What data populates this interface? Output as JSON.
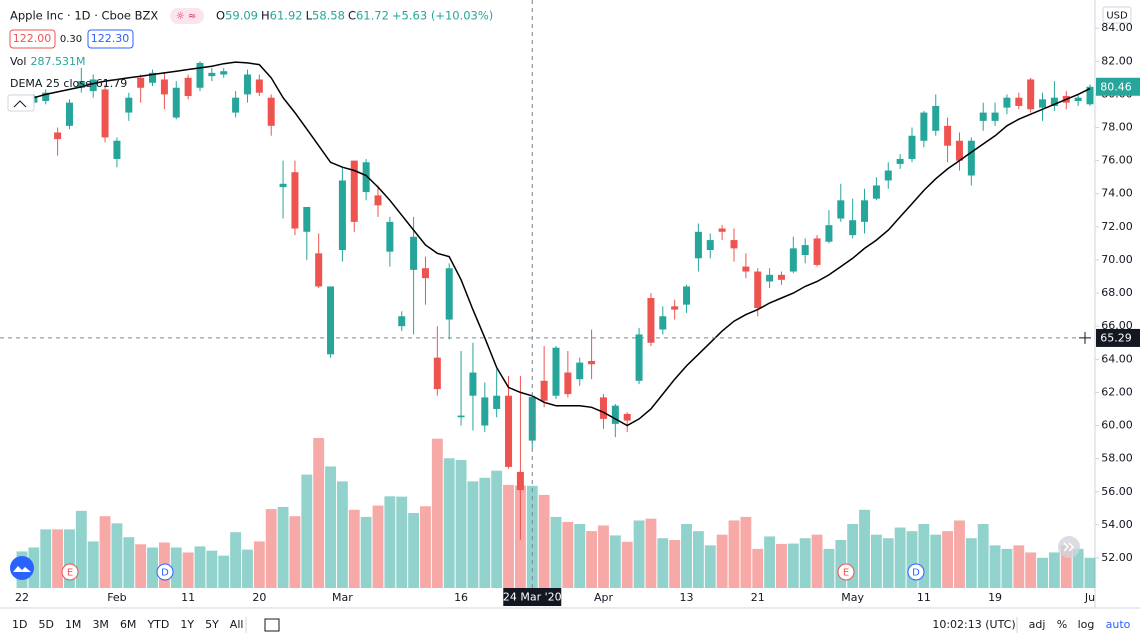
{
  "chart_data": {
    "type": "candlestick",
    "categories": [
      "22",
      null,
      null,
      null,
      null,
      null,
      null,
      null,
      "Feb",
      null,
      null,
      null,
      null,
      null,
      "11",
      null,
      null,
      null,
      null,
      null,
      "20",
      null,
      null,
      null,
      null,
      null,
      null,
      "Mar",
      null,
      null,
      null,
      null,
      null,
      null,
      null,
      null,
      null,
      "16",
      null,
      null,
      null,
      null,
      null,
      null,
      null,
      null,
      null,
      null,
      null,
      "Apr",
      null,
      null,
      null,
      null,
      null,
      null,
      "13",
      null,
      null,
      null,
      null,
      null,
      "21",
      null,
      null,
      null,
      null,
      null,
      null,
      null,
      "May",
      null,
      null,
      null,
      null,
      null,
      "11",
      null,
      null,
      null,
      null,
      null,
      "19",
      null,
      null,
      null,
      null,
      null,
      null,
      null,
      "Ju"
    ],
    "open": [
      79.3,
      79.5,
      79.6,
      77.7,
      78.1,
      80.4,
      80.2,
      80.3,
      76.1,
      78.9,
      81.0,
      80.7,
      80.9,
      78.6,
      81.0,
      80.4,
      81.1,
      81.2,
      78.9,
      80.0,
      80.9,
      79.8,
      74.4,
      75.3,
      71.7,
      70.4,
      64.3,
      70.6,
      76.0,
      74.1,
      73.9,
      70.5,
      66.0,
      69.4,
      69.5,
      64.1,
      66.4,
      60.5,
      61.8,
      60.0,
      61.0,
      61.8,
      57.2,
      59.09,
      62.7,
      61.8,
      63.2,
      62.8,
      63.9,
      61.7,
      60.1,
      60.7,
      62.7,
      67.7,
      65.8,
      67.2,
      67.3,
      70.1,
      70.6,
      71.9,
      71.2,
      69.6,
      69.3,
      68.7,
      69.1,
      69.3,
      70.3,
      71.3,
      71.1,
      72.5,
      71.5,
      72.3,
      73.7,
      74.8,
      75.8,
      76.1,
      77.2,
      77.8,
      78.1,
      77.2,
      75.1,
      78.4,
      78.4,
      79.2,
      79.8,
      80.9,
      79.2,
      79.3,
      79.9,
      79.6,
      79.4
    ],
    "high": [
      79.6,
      80.0,
      80.3,
      78.0,
      79.7,
      81.6,
      81.2,
      80.6,
      77.4,
      80.1,
      81.2,
      81.5,
      81.3,
      80.8,
      81.2,
      82.0,
      81.6,
      81.6,
      80.2,
      81.5,
      81.2,
      80.0,
      76.0,
      76.0,
      73.2,
      71.6,
      68.4,
      75.6,
      76.0,
      76.1,
      74.5,
      72.6,
      66.9,
      72.6,
      70.2,
      66.0,
      69.8,
      64.5,
      65.0,
      62.6,
      63.4,
      63.0,
      63.0,
      61.92,
      64.8,
      64.8,
      64.5,
      64.1,
      65.8,
      61.9,
      61.3,
      60.8,
      65.9,
      68.0,
      67.2,
      67.6,
      68.5,
      72.2,
      71.6,
      72.1,
      71.9,
      70.4,
      69.5,
      69.5,
      69.3,
      71.4,
      71.3,
      71.5,
      73.0,
      74.6,
      73.7,
      74.3,
      75.0,
      75.9,
      76.4,
      78.0,
      79.0,
      80.0,
      78.6,
      77.7,
      77.4,
      79.5,
      79.5,
      80.0,
      80.1,
      81.0,
      80.1,
      80.8,
      80.2,
      80.0,
      80.6
    ],
    "low": [
      79.0,
      79.3,
      79.4,
      76.3,
      77.9,
      80.1,
      79.8,
      77.1,
      75.6,
      78.4,
      79.5,
      80.5,
      79.1,
      78.5,
      79.7,
      80.2,
      80.8,
      81.0,
      78.6,
      79.5,
      79.9,
      77.5,
      72.5,
      71.5,
      70.0,
      68.3,
      64.1,
      69.9,
      71.7,
      73.6,
      72.6,
      69.6,
      65.7,
      65.5,
      67.3,
      61.8,
      65.2,
      60.0,
      59.7,
      59.6,
      60.5,
      57.4,
      53.1,
      58.58,
      61.1,
      61.6,
      61.7,
      62.4,
      62.8,
      59.8,
      59.3,
      59.6,
      62.5,
      64.8,
      65.5,
      66.4,
      66.8,
      69.3,
      70.1,
      71.2,
      69.9,
      68.9,
      66.6,
      68.3,
      68.5,
      69.2,
      69.8,
      69.6,
      71.0,
      72.3,
      71.3,
      71.6,
      73.6,
      74.3,
      75.5,
      75.9,
      76.8,
      77.5,
      75.9,
      75.4,
      74.5,
      77.8,
      78.1,
      78.8,
      79.1,
      78.9,
      78.4,
      79.0,
      79.1,
      79.3,
      79.3
    ],
    "close": [
      79.5,
      79.9,
      80.1,
      77.3,
      79.5,
      80.8,
      80.9,
      77.4,
      77.2,
      79.8,
      80.4,
      81.3,
      80.0,
      80.4,
      79.9,
      81.9,
      81.3,
      81.4,
      79.8,
      81.2,
      80.1,
      78.1,
      74.6,
      71.9,
      73.2,
      68.4,
      68.4,
      74.8,
      72.3,
      75.9,
      73.3,
      72.3,
      66.6,
      71.4,
      68.9,
      62.2,
      69.5,
      60.6,
      63.2,
      61.7,
      61.8,
      57.5,
      56.1,
      61.72,
      61.5,
      64.7,
      61.9,
      63.8,
      63.7,
      60.4,
      61.2,
      60.3,
      65.5,
      65.0,
      66.6,
      67.0,
      68.4,
      71.7,
      71.2,
      71.7,
      70.7,
      69.3,
      67.1,
      69.1,
      68.8,
      70.7,
      70.9,
      69.7,
      72.1,
      73.6,
      72.4,
      73.6,
      74.5,
      75.4,
      76.1,
      77.5,
      78.9,
      79.3,
      76.9,
      76.0,
      77.2,
      78.9,
      78.9,
      79.8,
      79.3,
      79.1,
      79.7,
      79.8,
      79.5,
      79.8,
      80.46
    ],
    "volume": [
      103,
      114,
      165,
      165,
      165,
      217,
      131,
      202,
      182,
      143,
      123,
      114,
      128,
      114,
      100,
      117,
      105,
      91,
      157,
      108,
      131,
      222,
      228,
      202,
      319,
      422,
      342,
      300,
      220,
      200,
      232,
      258,
      257,
      211,
      230,
      420,
      365,
      360,
      300,
      310,
      330,
      290,
      288,
      287.531,
      262,
      200,
      186,
      180,
      160,
      176,
      148,
      130,
      190,
      195,
      140,
      135,
      180,
      160,
      120,
      150,
      190,
      200,
      110,
      145,
      124,
      125,
      140,
      150,
      110,
      135,
      180,
      220,
      150,
      140,
      170,
      160,
      180,
      150,
      160,
      190,
      140,
      180,
      120,
      110,
      120,
      100,
      85,
      100,
      120,
      110,
      85
    ],
    "up_color": "#26a69a",
    "down_color": "#ef5350",
    "overlays": [
      {
        "name": "DEMA 25 close",
        "color": "#000000",
        "values": [
          79.65,
          79.8,
          80.0,
          80.15,
          80.3,
          80.45,
          80.65,
          80.8,
          80.9,
          81.0,
          81.1,
          81.2,
          81.3,
          81.4,
          81.5,
          81.6,
          81.7,
          81.85,
          81.95,
          81.9,
          81.8,
          81.0,
          79.8,
          78.9,
          77.9,
          76.9,
          75.9,
          75.6,
          75.4,
          75.1,
          74.4,
          73.6,
          72.7,
          71.8,
          70.9,
          70.4,
          70.2,
          68.8,
          67.0,
          65.3,
          63.5,
          62.3,
          62.0,
          61.79,
          61.4,
          61.2,
          61.2,
          61.2,
          61.1,
          60.8,
          60.4,
          60.0,
          60.4,
          61.0,
          61.9,
          62.8,
          63.6,
          64.3,
          65.0,
          65.7,
          66.3,
          66.7,
          67.0,
          67.4,
          67.7,
          68.0,
          68.4,
          68.7,
          69.1,
          69.6,
          70.1,
          70.7,
          71.2,
          71.8,
          72.6,
          73.4,
          74.2,
          74.9,
          75.5,
          76.0,
          76.5,
          77.0,
          77.5,
          78.1,
          78.5,
          78.8,
          79.1,
          79.4,
          79.7,
          80.0,
          80.35
        ]
      }
    ],
    "ylim": [
      49.1,
      85.7
    ],
    "yticks": [
      {
        "value": 52,
        "label": "52.00"
      },
      {
        "value": 54,
        "label": "54.00"
      },
      {
        "value": 56,
        "label": "56.00"
      },
      {
        "value": 58,
        "label": "58.00"
      },
      {
        "value": 60,
        "label": "60.00"
      },
      {
        "value": 62,
        "label": "62.00"
      },
      {
        "value": 64,
        "label": "64.00"
      },
      {
        "value": 66,
        "label": "66.00"
      },
      {
        "value": 68,
        "label": "68.00"
      },
      {
        "value": 70,
        "label": "70.00"
      },
      {
        "value": 72,
        "label": "72.00"
      },
      {
        "value": 74,
        "label": "74.00"
      },
      {
        "value": 76,
        "label": "76.00"
      },
      {
        "value": 78,
        "label": "78.00"
      },
      {
        "value": 80,
        "label": "80.00"
      },
      {
        "value": 82,
        "label": "82.00"
      },
      {
        "value": 84,
        "label": "84.00"
      }
    ],
    "grid": false,
    "last_price": 80.46,
    "crosshair": {
      "date": "24 Mar '20",
      "price": 65.29
    }
  },
  "header": {
    "symbol": "Apple Inc · 1D · Cboe BZX",
    "ohlc": [
      {
        "label": "O",
        "value": 59.09
      },
      {
        "label": "H",
        "value": 61.92
      },
      {
        "label": "L",
        "value": 58.58
      },
      {
        "label": "C",
        "value": 61.72
      }
    ],
    "change": "+5.63 (+10.03%)",
    "sell": "122.00",
    "spread": "0.30",
    "buy": "122.30",
    "vol_label": "Vol",
    "vol_value": "287.531M",
    "dema_label": "DEMA 25 close",
    "dema_value": "61.79"
  },
  "ui": {
    "currency": "USD",
    "events": [
      "E",
      "D",
      "E",
      "D"
    ],
    "ranges": [
      "1D",
      "5D",
      "1M",
      "3M",
      "6M",
      "YTD",
      "1Y",
      "5Y",
      "All"
    ],
    "time": "10:02:13 (UTC)",
    "options": [
      "adj",
      "%",
      "log",
      "auto"
    ]
  }
}
